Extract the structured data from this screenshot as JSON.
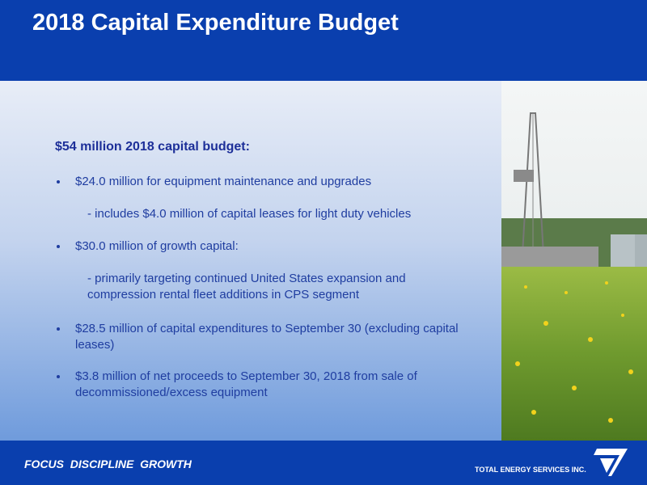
{
  "header": {
    "title": "2018 Capital Expenditure Budget"
  },
  "content": {
    "heading": "$54 million 2018 capital budget:",
    "items": [
      {
        "text": "$24.0 million for equipment maintenance and upgrades",
        "sub": "- includes $4.0 million of capital leases for light duty vehicles"
      },
      {
        "text": "$30.0 million of growth capital:",
        "sub": "- primarily targeting continued United States expansion and compression rental fleet additions in CPS segment"
      },
      {
        "text": "$28.5 million of capital expenditures to September 30 (excluding capital leases)"
      },
      {
        "text": "$3.8 million of net proceeds to September 30, 2018 from sale of decommissioned/excess equipment"
      }
    ]
  },
  "footer": {
    "tagline": "FOCUS  DISCIPLINE  GROWTH",
    "company": "TOTAL ENERGY SERVICES INC."
  }
}
